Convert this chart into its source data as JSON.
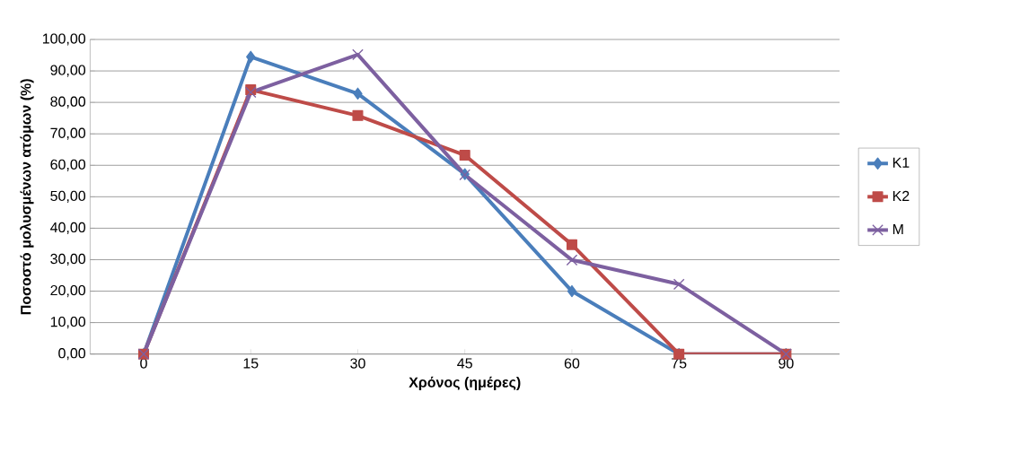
{
  "chart_data": {
    "type": "line",
    "xlabel": "Χρόνος (ημέρες)",
    "ylabel": "Ποσοστό μολυσμένων ατόμων (%)",
    "categories": [
      "0",
      "15",
      "30",
      "45",
      "60",
      "75",
      "90"
    ],
    "series": [
      {
        "name": "K1",
        "color": "#4a7ebb",
        "marker": "diamond",
        "values": [
          0,
          94.5,
          82.8,
          57.2,
          20.0,
          0,
          0
        ]
      },
      {
        "name": "K2",
        "color": "#be4b48",
        "marker": "square",
        "values": [
          0,
          84.0,
          75.8,
          63.2,
          34.8,
          0,
          0
        ]
      },
      {
        "name": "M",
        "color": "#7d60a0",
        "marker": "cross",
        "values": [
          0,
          83.2,
          95.2,
          57.0,
          29.9,
          22.2,
          0
        ]
      }
    ],
    "ylim": [
      0,
      100
    ],
    "yticks": [
      {
        "value": 0,
        "label": "0,00"
      },
      {
        "value": 10,
        "label": "10,00"
      },
      {
        "value": 20,
        "label": "20,00"
      },
      {
        "value": 30,
        "label": "30,00"
      },
      {
        "value": 40,
        "label": "40,00"
      },
      {
        "value": 50,
        "label": "50,00"
      },
      {
        "value": 60,
        "label": "60,00"
      },
      {
        "value": 70,
        "label": "70,00"
      },
      {
        "value": 80,
        "label": "80,00"
      },
      {
        "value": 90,
        "label": "90,00"
      },
      {
        "value": 100,
        "label": "100,00"
      }
    ],
    "grid": "y",
    "legend": "right",
    "line_style": "solid"
  }
}
